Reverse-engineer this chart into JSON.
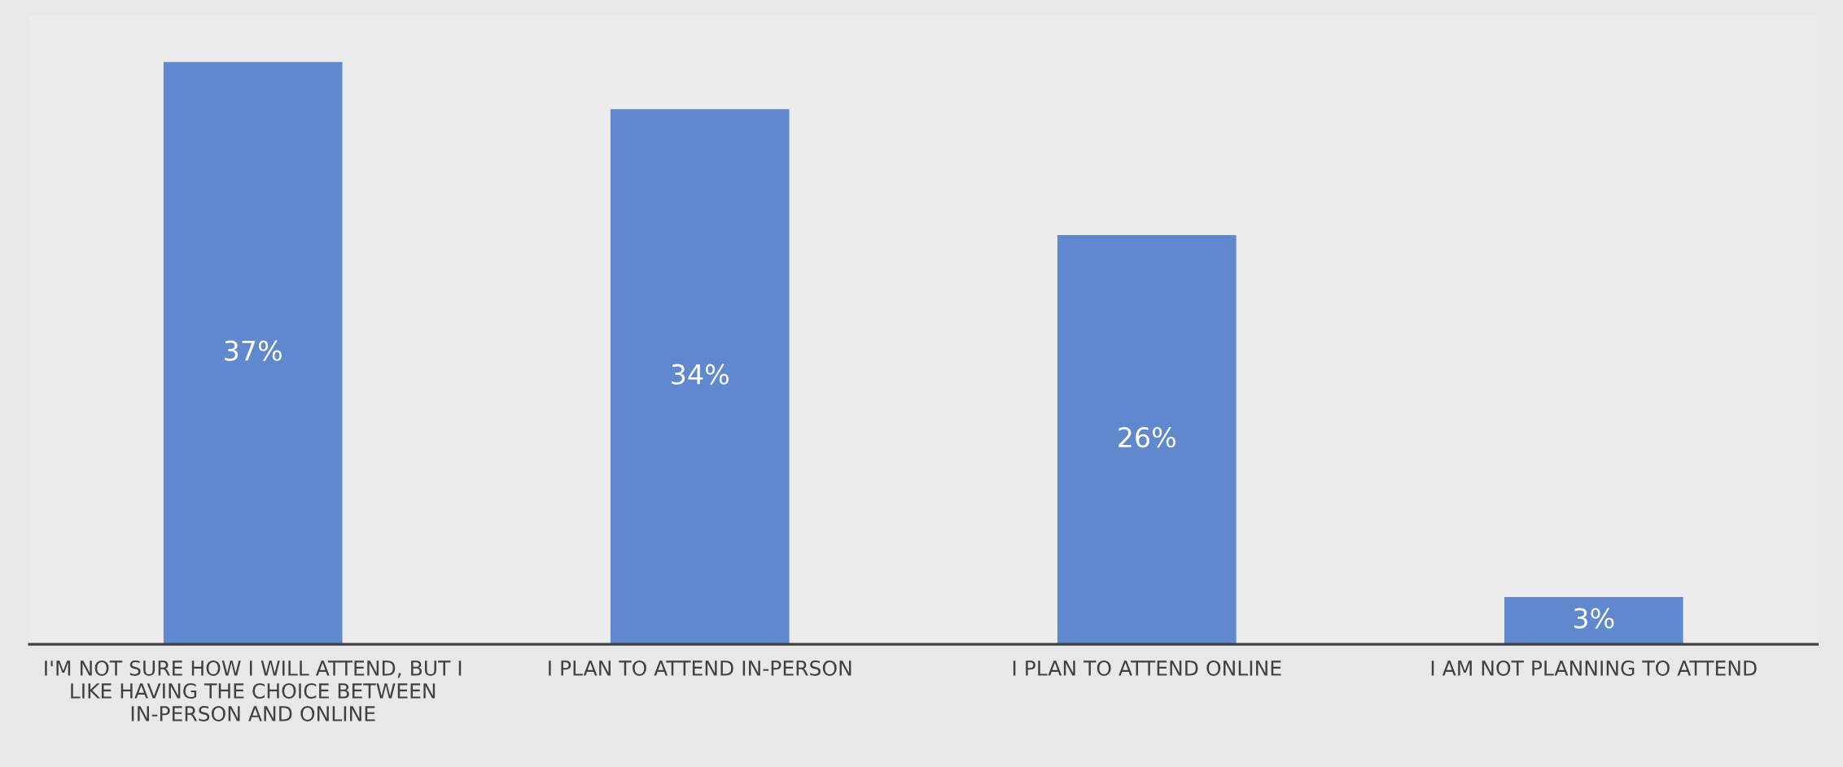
{
  "chart_data": {
    "type": "bar",
    "categories": [
      "I'M NOT SURE HOW I WILL ATTEND, BUT I LIKE HAVING THE CHOICE BETWEEN IN-PERSON AND ONLINE",
      "I PLAN TO ATTEND IN-PERSON",
      "I PLAN TO ATTEND ONLINE",
      "I AM NOT PLANNING TO ATTEND"
    ],
    "values": [
      37,
      34,
      26,
      3
    ],
    "value_labels": [
      "37%",
      "34%",
      "26%",
      "3%"
    ],
    "color": "#6088cf",
    "grid": false,
    "legend": false
  }
}
